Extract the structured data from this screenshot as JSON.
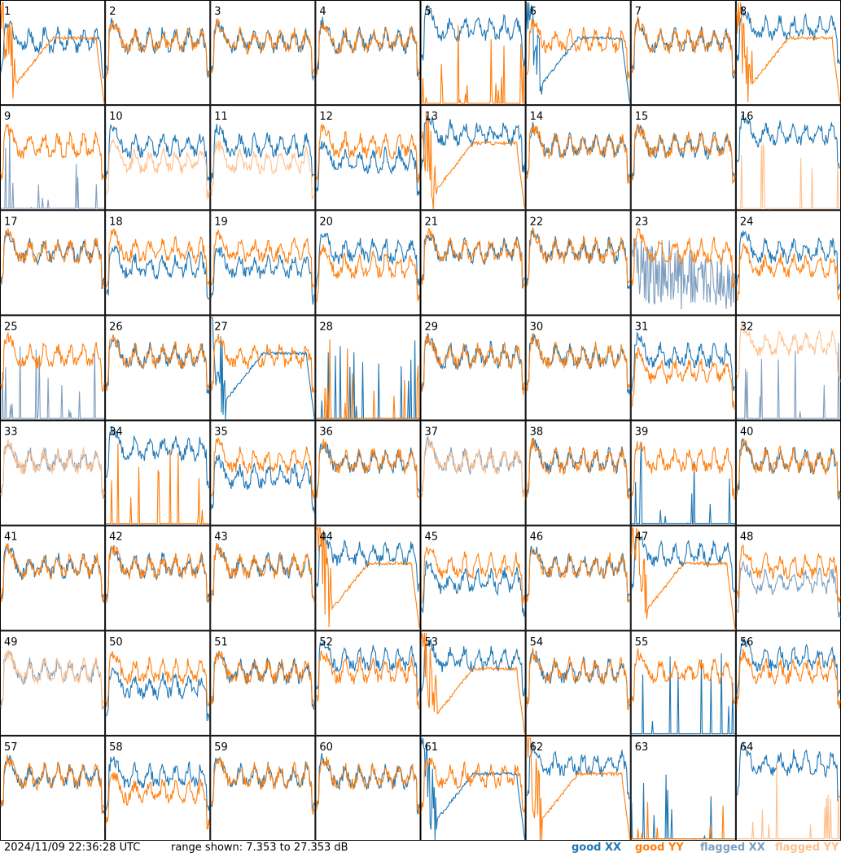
{
  "chart_data": {
    "type": "line",
    "layout": "8x8 grid of small multiples, one per tile",
    "x_axis": "frequency channel (unlabeled)",
    "y_range_db": [
      7.353,
      27.353
    ],
    "series_types": [
      "good XX",
      "good YY",
      "flagged XX",
      "flagged YY"
    ],
    "panels": [
      {
        "id": "1",
        "xx": "good",
        "yy": "good",
        "xx_shape": "normal",
        "yy_shape": "droop"
      },
      {
        "id": "2",
        "xx": "good",
        "yy": "good",
        "xx_shape": "normal",
        "yy_shape": "normal"
      },
      {
        "id": "3",
        "xx": "good",
        "yy": "good",
        "xx_shape": "normal",
        "yy_shape": "normal"
      },
      {
        "id": "4",
        "xx": "good",
        "yy": "good",
        "xx_shape": "normal",
        "yy_shape": "normal"
      },
      {
        "id": "5",
        "xx": "good",
        "yy": "good",
        "xx_shape": "high",
        "yy_shape": "dead"
      },
      {
        "id": "6",
        "xx": "good",
        "yy": "good",
        "xx_shape": "droop",
        "yy_shape": "normal"
      },
      {
        "id": "7",
        "xx": "good",
        "yy": "good",
        "xx_shape": "normal",
        "yy_shape": "normal"
      },
      {
        "id": "8",
        "xx": "good",
        "yy": "good",
        "xx_shape": "high",
        "yy_shape": "droop"
      },
      {
        "id": "9",
        "xx": "flagged",
        "yy": "good",
        "xx_shape": "dead",
        "yy_shape": "normal"
      },
      {
        "id": "10",
        "xx": "good",
        "yy": "flagged",
        "xx_shape": "normal",
        "yy_shape": "low"
      },
      {
        "id": "11",
        "xx": "good",
        "yy": "flagged",
        "xx_shape": "normal",
        "yy_shape": "low"
      },
      {
        "id": "12",
        "xx": "good",
        "yy": "good",
        "xx_shape": "low",
        "yy_shape": "normal"
      },
      {
        "id": "13",
        "xx": "good",
        "yy": "good",
        "xx_shape": "high",
        "yy_shape": "droop"
      },
      {
        "id": "14",
        "xx": "good",
        "yy": "good",
        "xx_shape": "normal",
        "yy_shape": "normal"
      },
      {
        "id": "15",
        "xx": "good",
        "yy": "good",
        "xx_shape": "normal",
        "yy_shape": "normal"
      },
      {
        "id": "16",
        "xx": "good",
        "yy": "flagged",
        "xx_shape": "high",
        "yy_shape": "dead"
      },
      {
        "id": "17",
        "xx": "good",
        "yy": "good",
        "xx_shape": "normal",
        "yy_shape": "normal"
      },
      {
        "id": "18",
        "xx": "good",
        "yy": "good",
        "xx_shape": "low",
        "yy_shape": "normal"
      },
      {
        "id": "19",
        "xx": "good",
        "yy": "good",
        "xx_shape": "low",
        "yy_shape": "normal"
      },
      {
        "id": "20",
        "xx": "good",
        "yy": "good",
        "xx_shape": "normal",
        "yy_shape": "low"
      },
      {
        "id": "21",
        "xx": "good",
        "yy": "good",
        "xx_shape": "normal",
        "yy_shape": "normal"
      },
      {
        "id": "22",
        "xx": "good",
        "yy": "good",
        "xx_shape": "normal",
        "yy_shape": "normal"
      },
      {
        "id": "23",
        "xx": "flagged",
        "yy": "good",
        "xx_shape": "noisy",
        "yy_shape": "normal"
      },
      {
        "id": "24",
        "xx": "good",
        "yy": "good",
        "xx_shape": "normal",
        "yy_shape": "low"
      },
      {
        "id": "25",
        "xx": "flagged",
        "yy": "good",
        "xx_shape": "dead",
        "yy_shape": "normal"
      },
      {
        "id": "26",
        "xx": "good",
        "yy": "good",
        "xx_shape": "normal",
        "yy_shape": "normal"
      },
      {
        "id": "27",
        "xx": "good",
        "yy": "good",
        "xx_shape": "droop",
        "yy_shape": "normal"
      },
      {
        "id": "28",
        "xx": "good",
        "yy": "good",
        "xx_shape": "dead",
        "yy_shape": "dead"
      },
      {
        "id": "29",
        "xx": "good",
        "yy": "good",
        "xx_shape": "normal",
        "yy_shape": "normal"
      },
      {
        "id": "30",
        "xx": "good",
        "yy": "good",
        "xx_shape": "normal",
        "yy_shape": "normal"
      },
      {
        "id": "31",
        "xx": "good",
        "yy": "good",
        "xx_shape": "normal",
        "yy_shape": "low"
      },
      {
        "id": "32",
        "xx": "flagged",
        "yy": "flagged",
        "xx_shape": "dead",
        "yy_shape": "high"
      },
      {
        "id": "33",
        "xx": "flagged",
        "yy": "flagged",
        "xx_shape": "normal",
        "yy_shape": "normal"
      },
      {
        "id": "34",
        "xx": "good",
        "yy": "good",
        "xx_shape": "high",
        "yy_shape": "dead"
      },
      {
        "id": "35",
        "xx": "good",
        "yy": "good",
        "xx_shape": "low",
        "yy_shape": "normal"
      },
      {
        "id": "36",
        "xx": "good",
        "yy": "good",
        "xx_shape": "normal",
        "yy_shape": "normal"
      },
      {
        "id": "37",
        "xx": "flagged",
        "yy": "flagged",
        "xx_shape": "normal",
        "yy_shape": "normal"
      },
      {
        "id": "38",
        "xx": "good",
        "yy": "good",
        "xx_shape": "normal",
        "yy_shape": "normal"
      },
      {
        "id": "39",
        "xx": "good",
        "yy": "good",
        "xx_shape": "dead",
        "yy_shape": "normal"
      },
      {
        "id": "40",
        "xx": "good",
        "yy": "good",
        "xx_shape": "normal",
        "yy_shape": "normal"
      },
      {
        "id": "41",
        "xx": "good",
        "yy": "good",
        "xx_shape": "normal",
        "yy_shape": "normal"
      },
      {
        "id": "42",
        "xx": "good",
        "yy": "good",
        "xx_shape": "normal",
        "yy_shape": "normal"
      },
      {
        "id": "43",
        "xx": "good",
        "yy": "good",
        "xx_shape": "normal",
        "yy_shape": "normal"
      },
      {
        "id": "44",
        "xx": "good",
        "yy": "good",
        "xx_shape": "high",
        "yy_shape": "droop"
      },
      {
        "id": "45",
        "xx": "good",
        "yy": "good",
        "xx_shape": "low",
        "yy_shape": "normal"
      },
      {
        "id": "46",
        "xx": "good",
        "yy": "good",
        "xx_shape": "normal",
        "yy_shape": "normal"
      },
      {
        "id": "47",
        "xx": "good",
        "yy": "good",
        "xx_shape": "high",
        "yy_shape": "droop"
      },
      {
        "id": "48",
        "xx": "flagged",
        "yy": "good",
        "xx_shape": "low",
        "yy_shape": "normal"
      },
      {
        "id": "49",
        "xx": "flagged",
        "yy": "flagged",
        "xx_shape": "normal",
        "yy_shape": "normal"
      },
      {
        "id": "50",
        "xx": "good",
        "yy": "good",
        "xx_shape": "low",
        "yy_shape": "normal"
      },
      {
        "id": "51",
        "xx": "good",
        "yy": "good",
        "xx_shape": "normal",
        "yy_shape": "normal"
      },
      {
        "id": "52",
        "xx": "good",
        "yy": "good",
        "xx_shape": "high",
        "yy_shape": "normal"
      },
      {
        "id": "53",
        "xx": "good",
        "yy": "good",
        "xx_shape": "high",
        "yy_shape": "droop"
      },
      {
        "id": "54",
        "xx": "good",
        "yy": "good",
        "xx_shape": "normal",
        "yy_shape": "normal"
      },
      {
        "id": "55",
        "xx": "good",
        "yy": "good",
        "xx_shape": "dead",
        "yy_shape": "normal"
      },
      {
        "id": "56",
        "xx": "good",
        "yy": "good",
        "xx_shape": "high",
        "yy_shape": "normal"
      },
      {
        "id": "57",
        "xx": "good",
        "yy": "good",
        "xx_shape": "normal",
        "yy_shape": "normal"
      },
      {
        "id": "58",
        "xx": "good",
        "yy": "good",
        "xx_shape": "normal",
        "yy_shape": "low"
      },
      {
        "id": "59",
        "xx": "good",
        "yy": "good",
        "xx_shape": "normal",
        "yy_shape": "normal"
      },
      {
        "id": "60",
        "xx": "good",
        "yy": "good",
        "xx_shape": "normal",
        "yy_shape": "normal"
      },
      {
        "id": "61",
        "xx": "good",
        "yy": "good",
        "xx_shape": "droop",
        "yy_shape": "normal"
      },
      {
        "id": "62",
        "xx": "good",
        "yy": "good",
        "xx_shape": "high",
        "yy_shape": "droop"
      },
      {
        "id": "63",
        "xx": "good",
        "yy": "good",
        "xx_shape": "dead",
        "yy_shape": "dead"
      },
      {
        "id": "64",
        "xx": "good",
        "yy": "flagged",
        "xx_shape": "high",
        "yy_shape": "dead"
      }
    ]
  },
  "colors": {
    "good_xx": "#1f77b4",
    "good_yy": "#ff7f0e",
    "flagged_xx": "#7f9fbf",
    "flagged_yy": "#ffc08c"
  },
  "footer": {
    "timestamp": "2024/11/09 22:36:28 UTC",
    "range": "range shown: 7.353 to 27.353 dB"
  },
  "legend": {
    "good_xx": "good XX",
    "good_yy": "good YY",
    "flagged_xx": "flagged XX",
    "flagged_yy": "flagged YY"
  }
}
